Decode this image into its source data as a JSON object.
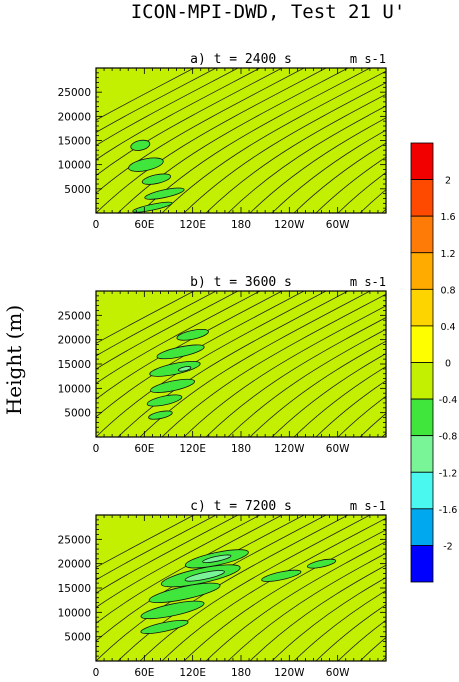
{
  "figure": {
    "title": "ICON-MPI-DWD, Test 21 U'",
    "ylabel": "Height (m)"
  },
  "chart_data": {
    "type": "heatmap",
    "title": "ICON-MPI-DWD, Test 21 U'",
    "ylabel": "Height (m)",
    "colorbar": {
      "levels": [
        -2,
        -1.6,
        -1.2,
        -0.8,
        -0.4,
        0,
        0.4,
        0.8,
        1.2,
        1.6,
        2
      ],
      "tick_labels": [
        "2",
        "1.6",
        "1.2",
        "0.8",
        "0.4",
        "0",
        "-0.4",
        "-0.8",
        "-1.2",
        "-1.6",
        "-2"
      ],
      "colors": [
        "#0000ff",
        "#00a9ef",
        "#4bf8f0",
        "#79f598",
        "#40e63b",
        "#c3ef00",
        "#fffe00",
        "#fdd300",
        "#ffab00",
        "#fe7b07",
        "#fe4a00",
        "#f20000"
      ]
    },
    "panels": [
      {
        "label": "a) t = 2400 s",
        "units": "m s-1",
        "x_ticks": [
          "0",
          "60E",
          "120E",
          "180",
          "120W",
          "60W"
        ],
        "y_ticks": [
          "5000",
          "10000",
          "15000",
          "20000",
          "25000"
        ],
        "xlim": [
          0,
          360
        ],
        "ylim": [
          0,
          30000
        ],
        "background_level": "0 to 0.4",
        "features": [
          {
            "lon": 55,
            "z": 14000,
            "dx": 12,
            "dz": 1000,
            "value": -0.6
          },
          {
            "lon": 62,
            "z": 10000,
            "dx": 22,
            "dz": 1200,
            "value": -0.6
          },
          {
            "lon": 75,
            "z": 7000,
            "dx": 18,
            "dz": 900,
            "value": -0.6
          },
          {
            "lon": 85,
            "z": 4000,
            "dx": 25,
            "dz": 800,
            "value": -0.6
          },
          {
            "lon": 70,
            "z": 1200,
            "dx": 25,
            "dz": 600,
            "value": -0.6
          }
        ]
      },
      {
        "label": "b) t = 3600 s",
        "units": "m s-1",
        "x_ticks": [
          "0",
          "60E",
          "120E",
          "180",
          "120W",
          "60W"
        ],
        "y_ticks": [
          "5000",
          "10000",
          "15000",
          "20000",
          "25000"
        ],
        "xlim": [
          0,
          360
        ],
        "ylim": [
          0,
          30000
        ],
        "background_level": "0 to 0.4",
        "features": [
          {
            "lon": 120,
            "z": 21000,
            "dx": 20,
            "dz": 900,
            "value": -0.6
          },
          {
            "lon": 105,
            "z": 17500,
            "dx": 30,
            "dz": 1000,
            "value": -0.6
          },
          {
            "lon": 98,
            "z": 14000,
            "dx": 32,
            "dz": 1100,
            "value": -0.6
          },
          {
            "lon": 110,
            "z": 14000,
            "dx": 8,
            "dz": 400,
            "value": -1.0
          },
          {
            "lon": 95,
            "z": 10500,
            "dx": 28,
            "dz": 1000,
            "value": -0.6
          },
          {
            "lon": 85,
            "z": 7500,
            "dx": 22,
            "dz": 900,
            "value": -0.6
          },
          {
            "lon": 80,
            "z": 4500,
            "dx": 15,
            "dz": 700,
            "value": -0.6
          }
        ]
      },
      {
        "label": "c) t = 7200 s",
        "units": "m s-1",
        "x_ticks": [
          "0",
          "60E",
          "120E",
          "180",
          "120W",
          "60W"
        ],
        "y_ticks": [
          "5000",
          "10000",
          "15000",
          "20000",
          "25000"
        ],
        "xlim": [
          0,
          360
        ],
        "ylim": [
          0,
          30000
        ],
        "background_level": "0 to 0.4",
        "features": [
          {
            "lon": 150,
            "z": 21000,
            "dx": 40,
            "dz": 1300,
            "value": -0.6
          },
          {
            "lon": 150,
            "z": 21000,
            "dx": 18,
            "dz": 500,
            "value": -1.0
          },
          {
            "lon": 130,
            "z": 17500,
            "dx": 50,
            "dz": 1500,
            "value": -0.6
          },
          {
            "lon": 135,
            "z": 17500,
            "dx": 25,
            "dz": 700,
            "value": -1.0
          },
          {
            "lon": 110,
            "z": 14000,
            "dx": 45,
            "dz": 1300,
            "value": -0.6
          },
          {
            "lon": 95,
            "z": 10500,
            "dx": 40,
            "dz": 1200,
            "value": -0.6
          },
          {
            "lon": 85,
            "z": 7000,
            "dx": 30,
            "dz": 900,
            "value": -0.6
          },
          {
            "lon": 230,
            "z": 17500,
            "dx": 25,
            "dz": 800,
            "value": -0.6
          },
          {
            "lon": 280,
            "z": 20000,
            "dx": 18,
            "dz": 700,
            "value": -0.6
          }
        ]
      }
    ]
  }
}
